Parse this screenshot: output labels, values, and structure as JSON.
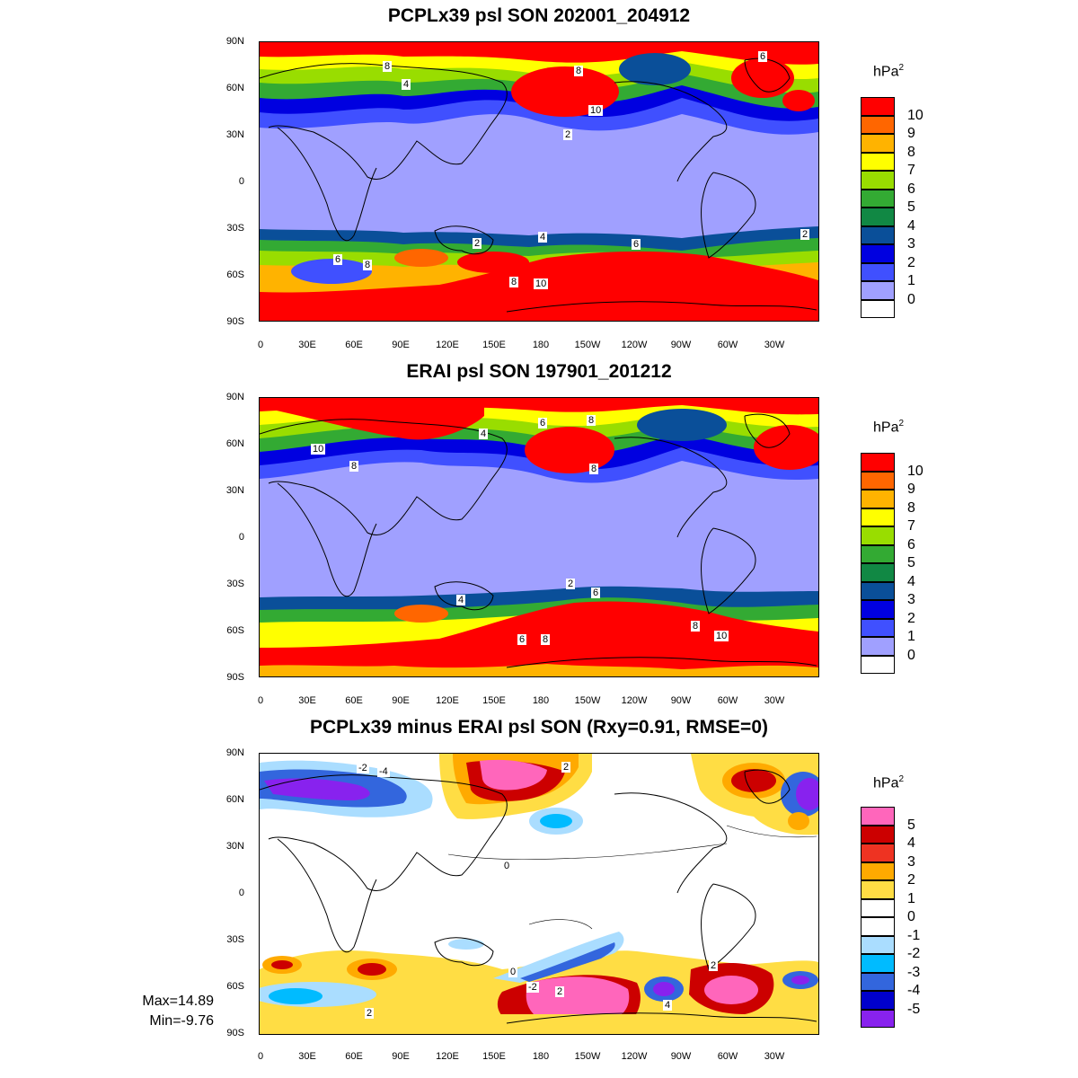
{
  "panels": [
    {
      "title": "PCPLx39 psl SON 202001_204912",
      "unit": "hPa",
      "unit_sup": "2",
      "colorbar": {
        "labels": [
          "10",
          "9",
          "8",
          "7",
          "6",
          "5",
          "4",
          "3",
          "2",
          "1",
          "0"
        ],
        "colors": [
          "#ff0000",
          "#ff6600",
          "#ffb300",
          "#ffff00",
          "#99dd00",
          "#33aa33",
          "#118844",
          "#0a4f99",
          "#0000e0",
          "#4050ff",
          "#a0a0ff",
          "#ffffff"
        ]
      },
      "contour_labels": [
        "8",
        "4",
        "8",
        "10",
        "2",
        "6",
        "2",
        "4",
        "6",
        "8",
        "10",
        "8",
        "6",
        "2"
      ]
    },
    {
      "title": "ERAI psl SON 197901_201212",
      "unit": "hPa",
      "unit_sup": "2",
      "colorbar": {
        "labels": [
          "10",
          "9",
          "8",
          "7",
          "6",
          "5",
          "4",
          "3",
          "2",
          "1",
          "0"
        ],
        "colors": [
          "#ff0000",
          "#ff6600",
          "#ffb300",
          "#ffff00",
          "#99dd00",
          "#33aa33",
          "#118844",
          "#0a4f99",
          "#0000e0",
          "#4050ff",
          "#a0a0ff",
          "#ffffff"
        ]
      },
      "contour_labels": [
        "10",
        "8",
        "4",
        "6",
        "8",
        "8",
        "2",
        "6",
        "4",
        "6",
        "8",
        "8",
        "10"
      ]
    },
    {
      "title": "PCPLx39 minus ERAI psl SON (Rxy=0.91, RMSE=0)",
      "unit": "hPa",
      "unit_sup": "2",
      "colorbar": {
        "labels": [
          "5",
          "4",
          "3",
          "2",
          "1",
          "0",
          "-1",
          "-2",
          "-3",
          "-4",
          "-5"
        ],
        "colors": [
          "#ff66bb",
          "#cc0000",
          "#ee3322",
          "#ffaa00",
          "#ffdd44",
          "#ffffff",
          "#ffffff",
          "#aaddff",
          "#00bbff",
          "#3366dd",
          "#0000cc",
          "#8822ee"
        ]
      },
      "contour_labels": [
        "-2",
        "-4",
        "2",
        "0",
        "0",
        "2",
        "-2",
        "2",
        "4",
        "2"
      ],
      "stats": {
        "max": "Max=14.89",
        "min": "Min=-9.76"
      }
    }
  ],
  "lat_ticks": [
    "90N",
    "60N",
    "30N",
    "0",
    "30S",
    "60S",
    "90S"
  ],
  "lon_ticks": [
    "0",
    "30E",
    "60E",
    "90E",
    "120E",
    "150E",
    "180",
    "150W",
    "120W",
    "90W",
    "60W",
    "30W"
  ]
}
